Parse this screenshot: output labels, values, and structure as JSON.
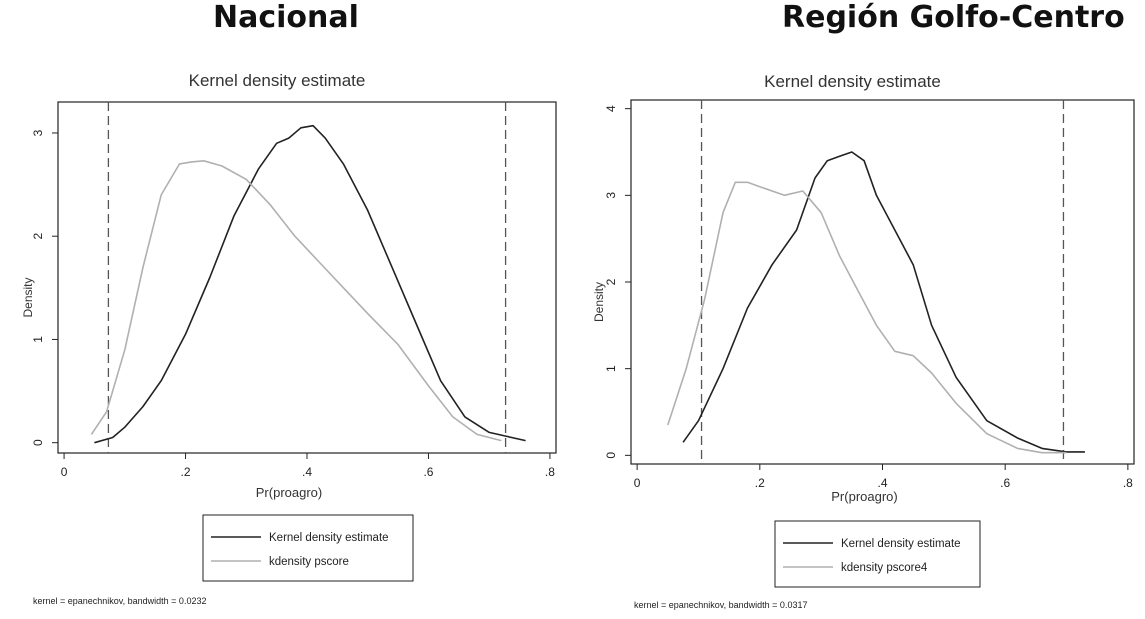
{
  "headings": [
    "Nacional",
    "Región Golfo-Centro"
  ],
  "chart_data": [
    {
      "type": "line",
      "title": "Kernel density estimate",
      "xlabel": "Pr(proagro)",
      "ylabel": "Density",
      "xlim": [
        -0.01,
        0.81
      ],
      "ylim": [
        -0.1,
        3.3
      ],
      "xticks": [
        0,
        0.2,
        0.4,
        0.6,
        0.8
      ],
      "xtick_labels": [
        "0",
        ".2",
        ".4",
        ".6",
        ".8"
      ],
      "yticks": [
        0,
        1,
        2,
        3
      ],
      "ytick_labels": [
        "0",
        "1",
        "2",
        "3"
      ],
      "vlines": [
        0.073,
        0.727
      ],
      "grid": false,
      "legend_position": "bottom",
      "series": [
        {
          "name": "Kernel density estimate",
          "color": "#222222",
          "x": [
            0.05,
            0.08,
            0.1,
            0.13,
            0.16,
            0.2,
            0.24,
            0.28,
            0.32,
            0.35,
            0.37,
            0.39,
            0.41,
            0.43,
            0.46,
            0.5,
            0.54,
            0.58,
            0.62,
            0.66,
            0.7,
            0.73,
            0.76
          ],
          "y": [
            0.0,
            0.05,
            0.15,
            0.35,
            0.6,
            1.05,
            1.6,
            2.2,
            2.65,
            2.9,
            2.95,
            3.05,
            3.07,
            2.95,
            2.7,
            2.25,
            1.7,
            1.15,
            0.6,
            0.25,
            0.1,
            0.06,
            0.02
          ]
        },
        {
          "name": "kdensity pscore",
          "color": "#b0b0b0",
          "x": [
            0.045,
            0.07,
            0.1,
            0.13,
            0.16,
            0.19,
            0.21,
            0.23,
            0.26,
            0.3,
            0.34,
            0.38,
            0.42,
            0.46,
            0.5,
            0.55,
            0.6,
            0.64,
            0.68,
            0.72
          ],
          "y": [
            0.08,
            0.3,
            0.9,
            1.7,
            2.4,
            2.7,
            2.72,
            2.73,
            2.68,
            2.55,
            2.3,
            2.0,
            1.75,
            1.5,
            1.25,
            0.95,
            0.55,
            0.25,
            0.08,
            0.02
          ]
        }
      ],
      "note": "kernel = epanechnikov, bandwidth = 0.0232"
    },
    {
      "type": "line",
      "title": "Kernel density estimate",
      "xlabel": "Pr(proagro)",
      "ylabel": "Density",
      "xlim": [
        -0.01,
        0.81
      ],
      "ylim": [
        -0.1,
        4.1
      ],
      "xticks": [
        0,
        0.2,
        0.4,
        0.6,
        0.8
      ],
      "xtick_labels": [
        "0",
        ".2",
        ".4",
        ".6",
        ".8"
      ],
      "yticks": [
        0,
        1,
        2,
        3,
        4
      ],
      "ytick_labels": [
        "0",
        "1",
        "2",
        "3",
        "4"
      ],
      "vlines": [
        0.105,
        0.695
      ],
      "grid": false,
      "legend_position": "bottom",
      "series": [
        {
          "name": "Kernel density estimate",
          "color": "#222222",
          "x": [
            0.075,
            0.1,
            0.14,
            0.18,
            0.22,
            0.26,
            0.29,
            0.31,
            0.33,
            0.35,
            0.37,
            0.39,
            0.42,
            0.45,
            0.48,
            0.52,
            0.57,
            0.62,
            0.66,
            0.7,
            0.73
          ],
          "y": [
            0.15,
            0.4,
            1.0,
            1.7,
            2.2,
            2.6,
            3.2,
            3.4,
            3.45,
            3.5,
            3.4,
            3.0,
            2.6,
            2.2,
            1.5,
            0.9,
            0.4,
            0.2,
            0.08,
            0.04,
            0.04
          ]
        },
        {
          "name": "kdensity pscore4",
          "color": "#b0b0b0",
          "x": [
            0.05,
            0.08,
            0.11,
            0.14,
            0.16,
            0.18,
            0.2,
            0.24,
            0.27,
            0.3,
            0.33,
            0.36,
            0.39,
            0.42,
            0.45,
            0.48,
            0.52,
            0.57,
            0.62,
            0.66,
            0.7
          ],
          "y": [
            0.35,
            1.0,
            1.8,
            2.8,
            3.15,
            3.15,
            3.1,
            3.0,
            3.05,
            2.8,
            2.3,
            1.9,
            1.5,
            1.2,
            1.15,
            0.95,
            0.6,
            0.25,
            0.08,
            0.03,
            0.03
          ]
        }
      ],
      "note": "kernel = epanechnikov, bandwidth = 0.0317"
    }
  ]
}
